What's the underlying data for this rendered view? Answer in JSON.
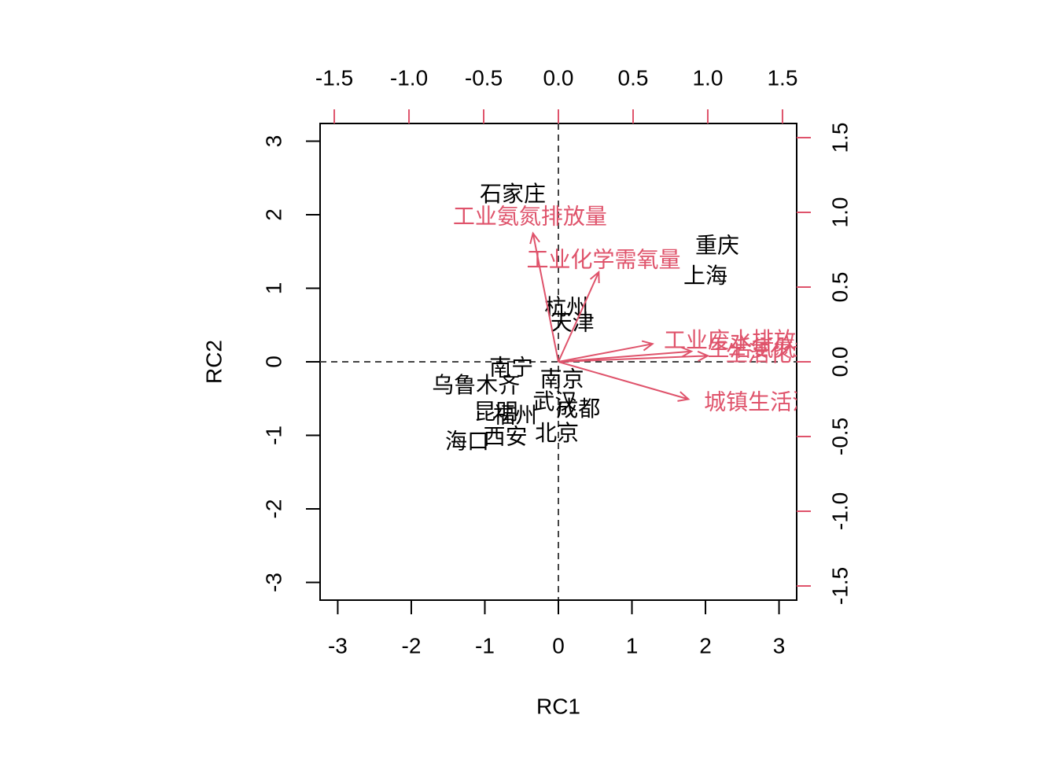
{
  "chart_data": {
    "type": "biplot",
    "xlabel": "RC1",
    "ylabel": "RC2",
    "xlim": [
      -3.24,
      3.24
    ],
    "ylim": [
      -3.24,
      3.24
    ],
    "xticks": [
      -3,
      -2,
      -1,
      0,
      1,
      2,
      3
    ],
    "yticks": [
      -3,
      -2,
      -1,
      0,
      1,
      2,
      3
    ],
    "x2lim": [
      -1.595,
      1.595
    ],
    "y2lim": [
      -1.595,
      1.595
    ],
    "x2ticks": [
      -1.5,
      {
        "value": -1,
        "label": "-1.0"
      },
      -0.5,
      {
        "value": 0,
        "label": "0.0"
      },
      0.5,
      {
        "value": 1,
        "label": "1.0"
      },
      1.5
    ],
    "y2ticks": [
      -1.5,
      {
        "value": -1,
        "label": "-1.0"
      },
      -0.5,
      {
        "value": 0,
        "label": "0.0"
      },
      0.5,
      {
        "value": 1,
        "label": "1.0"
      },
      1.5
    ],
    "points": {
      "color": "#000000",
      "labels": [
        "石家庄",
        "重庆",
        "上海",
        "杭州",
        "天津",
        "南宁",
        "乌鲁木齐",
        "南京",
        "武汉",
        "成都",
        "昆明",
        "福州",
        "西安",
        "北京",
        "海口"
      ],
      "x": [
        -0.62,
        2.16,
        2.0,
        0.11,
        0.19,
        -0.64,
        -1.12,
        0.05,
        -0.05,
        0.27,
        -0.85,
        -0.59,
        -0.72,
        -0.02,
        -1.24
      ],
      "y": [
        2.26,
        1.56,
        1.15,
        0.72,
        0.51,
        -0.1,
        -0.34,
        -0.26,
        -0.56,
        -0.66,
        -0.7,
        -0.75,
        -1.04,
        -0.99,
        -1.1
      ]
    },
    "loadings": {
      "color": "#DF536B",
      "labels": [
        "工业氨氮排放量",
        "工业化学需氧量",
        "城镇生活污水排放量",
        "工业废水排放量",
        "生活氨氮排放量",
        "生活化学需氧量排放量"
      ],
      "x": [
        -0.17,
        0.27,
        0.87,
        0.63,
        0.89,
        1.0
      ],
      "y": [
        0.86,
        0.6,
        -0.25,
        0.12,
        0.07,
        0.04
      ]
    }
  }
}
